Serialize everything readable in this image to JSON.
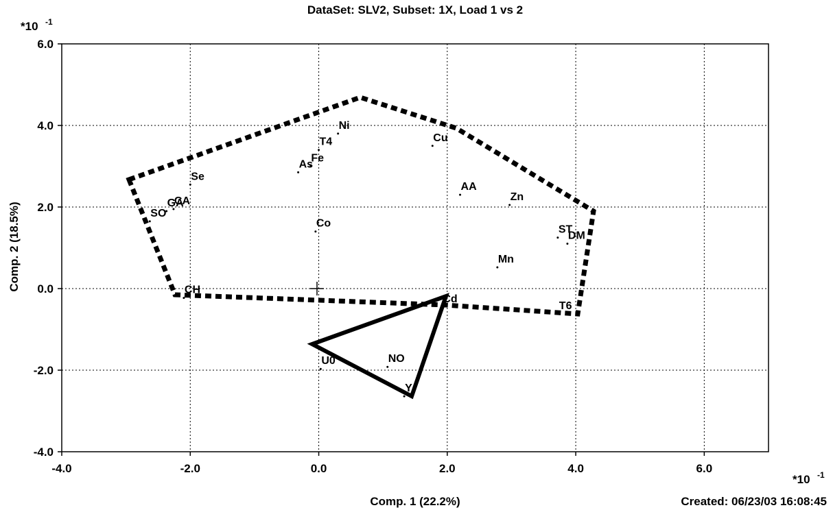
{
  "chart_data": {
    "type": "scatter",
    "title": "DataSet: SLV2, Subset: 1X, Load 1 vs 2",
    "x_label": "Comp. 1 (22.2%)",
    "y_label": "Comp. 2 (18.5%)",
    "scale_base": "*10",
    "scale_exponent": "-1",
    "footer": "Created: 06/23/03 16:08:45",
    "color": "#000000",
    "grid": true,
    "xlim": [
      -4,
      7
    ],
    "ylim": [
      -4,
      6
    ],
    "xticks": [
      {
        "value": -4,
        "label": "-4.0"
      },
      {
        "value": -2,
        "label": "-2.0"
      },
      {
        "value": 0,
        "label": "0.0"
      },
      {
        "value": 2,
        "label": "2.0"
      },
      {
        "value": 4,
        "label": "4.0"
      },
      {
        "value": 6,
        "label": "6.0"
      }
    ],
    "yticks": [
      {
        "value": -4,
        "label": "-4.0"
      },
      {
        "value": -2,
        "label": "-2.0"
      },
      {
        "value": 0,
        "label": "0.0"
      },
      {
        "value": 2,
        "label": "2.0"
      },
      {
        "value": 4,
        "label": "4.0"
      },
      {
        "value": 6,
        "label": "6.0"
      }
    ],
    "labels": [
      "Ni",
      "T4",
      "Cu",
      "Fe",
      "As",
      "Se",
      "AA",
      "Zn",
      "GA",
      "CA",
      "SO",
      "Co",
      "ST",
      "DM",
      "Mn",
      "CH",
      "Cd",
      "T6",
      "U0",
      "NO",
      "Y"
    ],
    "x": [
      0.3,
      0.0,
      1.77,
      -0.13,
      -0.32,
      -2.0,
      2.2,
      2.97,
      -2.37,
      -2.26,
      -2.63,
      -0.05,
      3.72,
      3.87,
      2.78,
      -2.1,
      1.92,
      3.73,
      0.03,
      1.07,
      1.33
    ],
    "y": [
      3.8,
      3.4,
      3.5,
      3.0,
      2.85,
      2.55,
      2.3,
      2.05,
      1.9,
      1.95,
      1.65,
      1.4,
      1.25,
      1.1,
      0.52,
      -0.23,
      -0.45,
      -0.62,
      -1.97,
      -1.92,
      -2.64
    ]
  }
}
